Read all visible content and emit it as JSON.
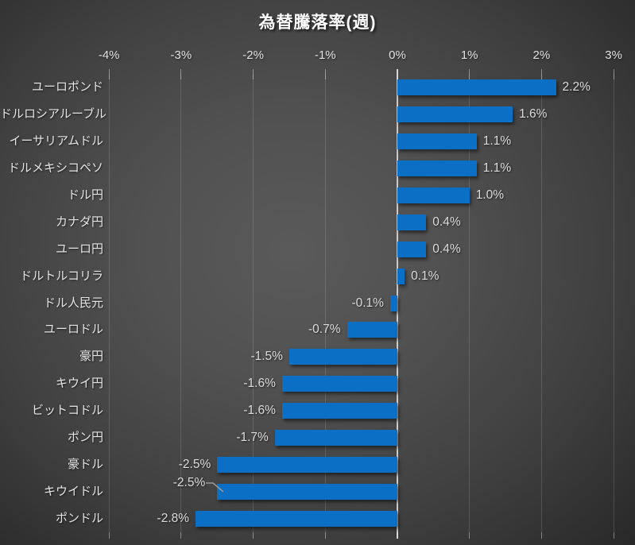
{
  "title": "為替騰落率(週)",
  "chart_data": {
    "type": "bar",
    "orientation": "horizontal",
    "title": "為替騰落率(週)",
    "categories": [
      "ユーロポンド",
      "ドルロシアルーブル",
      "イーサリアムドル",
      "ドルメキシコペソ",
      "ドル円",
      "カナダ円",
      "ユーロ円",
      "ドルトルコリラ",
      "ドル人民元",
      "ユーロドル",
      "豪円",
      "キウイ円",
      "ビットコドル",
      "ポン円",
      "豪ドル",
      "キウイドル",
      "ポンドル"
    ],
    "values": [
      2.2,
      1.6,
      1.1,
      1.1,
      1.0,
      0.4,
      0.4,
      0.1,
      -0.1,
      -0.7,
      -1.5,
      -1.6,
      -1.6,
      -1.7,
      -2.5,
      -2.5,
      -2.8
    ],
    "value_labels": [
      "2.2%",
      "1.6%",
      "1.1%",
      "1.1%",
      "1.0%",
      "0.4%",
      "0.4%",
      "0.1%",
      "-0.1%",
      "-0.7%",
      "-1.5%",
      "-1.6%",
      "-1.6%",
      "-1.7%",
      "-2.5%",
      "-2.5%",
      "-2.8%"
    ],
    "x_ticks": [
      -4,
      -3,
      -2,
      -1,
      0,
      1,
      2,
      3
    ],
    "x_tick_labels": [
      "-4%",
      "-3%",
      "-2%",
      "-1%",
      "0%",
      "1%",
      "2%",
      "3%"
    ],
    "xlim": [
      -4,
      3
    ],
    "grid": true,
    "legend": false,
    "axis_position": "top",
    "leader_line_index": 15,
    "colors": {
      "bar": "#0b70c5",
      "background_center": "#5a5a5a",
      "background_edge": "#242424",
      "text": "#e2e2e2",
      "zero_axis": "#cccccc",
      "leader_line": "#9a9a9a"
    }
  }
}
